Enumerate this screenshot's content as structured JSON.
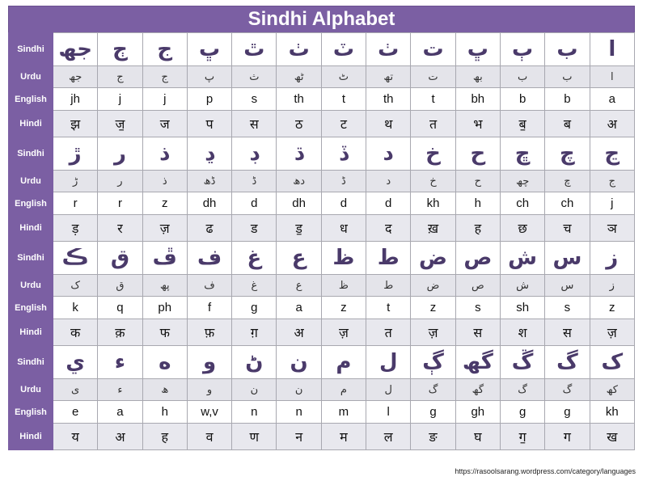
{
  "title": "Sindhi Alphabet",
  "labels": {
    "sindhi": "Sindhi",
    "urdu": "Urdu",
    "english": "English",
    "hindi": "Hindi"
  },
  "blocks": [
    {
      "sindhi": [
        "جھ",
        "ڄ",
        "ج",
        "ڀ",
        "ٿ",
        "ٺ",
        "ٽ",
        "ٺ",
        "ت",
        "ڀ",
        "ٻ",
        "ب",
        "ا"
      ],
      "urdu": [
        "جھ",
        "ج",
        "ج",
        "پ",
        "ث",
        "ٹھ",
        "ٹ",
        "تھ",
        "ت",
        "بھ",
        "ب",
        "ب",
        "ا"
      ],
      "english": [
        "jh",
        "j",
        "j",
        "p",
        "s",
        "th",
        "t",
        "th",
        "t",
        "bh",
        "b",
        "b",
        "a"
      ],
      "hindi": [
        "झ",
        "ज॒",
        "ज",
        "प",
        "स",
        "ठ",
        "ट",
        "थ",
        "त",
        "भ",
        "ब॒",
        "ब",
        "अ"
      ]
    },
    {
      "sindhi": [
        "ڙ",
        "ر",
        "ذ",
        "ڍ",
        "ڊ",
        "ڌ",
        "ڏ",
        "د",
        "خ",
        "ح",
        "ڇ",
        "چ",
        "ڃ"
      ],
      "urdu": [
        "ڑ",
        "ر",
        "ذ",
        "ڈھ",
        "ڈ",
        "دھ",
        "ڈ",
        "د",
        "خ",
        "ح",
        "چھ",
        "چ",
        "ج"
      ],
      "english": [
        "r",
        "r",
        "z",
        "dh",
        "d",
        "dh",
        "d",
        "d",
        "kh",
        "h",
        "ch",
        "ch",
        "j"
      ],
      "hindi": [
        "ड़",
        "र",
        "ज़",
        "ढ",
        "ड",
        "ड॒",
        "ध",
        "द",
        "ख़",
        "ह",
        "छ",
        "च",
        "ञ"
      ]
    },
    {
      "sindhi": [
        "ڪ",
        "ق",
        "ڦ",
        "ف",
        "غ",
        "ع",
        "ظ",
        "ط",
        "ض",
        "ص",
        "ش",
        "س",
        "ز"
      ],
      "urdu": [
        "ک",
        "ق",
        "پھ",
        "ف",
        "غ",
        "ع",
        "ظ",
        "ط",
        "ض",
        "ص",
        "ش",
        "س",
        "ز"
      ],
      "english": [
        "k",
        "q",
        "ph",
        "f",
        "g",
        "a",
        "z",
        "t",
        "z",
        "s",
        "sh",
        "s",
        "z"
      ],
      "hindi": [
        "क",
        "क़",
        "फ",
        "फ़",
        "ग़",
        "अ",
        "ज़",
        "त",
        "ज़",
        "स",
        "श",
        "स",
        "ज़"
      ]
    },
    {
      "sindhi": [
        "ي",
        "ء",
        "ه",
        "و",
        "ڻ",
        "ن",
        "م",
        "ل",
        "ڳ",
        "گھ",
        "ڱ",
        "گ",
        "ک"
      ],
      "urdu": [
        "ی",
        "ء",
        "ھ",
        "و",
        "ن",
        "ن",
        "م",
        "ل",
        "گ",
        "گھ",
        "گ",
        "گ",
        "کھ"
      ],
      "english": [
        "e",
        "a",
        "h",
        "w,v",
        "n",
        "n",
        "m",
        "l",
        "g",
        "gh",
        "g",
        "g",
        "kh"
      ],
      "hindi": [
        "य",
        "अ",
        "ह",
        "व",
        "ण",
        "न",
        "म",
        "ल",
        "ङ",
        "घ",
        "ग॒",
        "ग",
        "ख"
      ]
    }
  ],
  "source_url": "https://rasoolsarang.wordpress.com/category/languages",
  "colors": {
    "header": "#7b5fa3",
    "sindhi_text": "#4a3a6a"
  }
}
